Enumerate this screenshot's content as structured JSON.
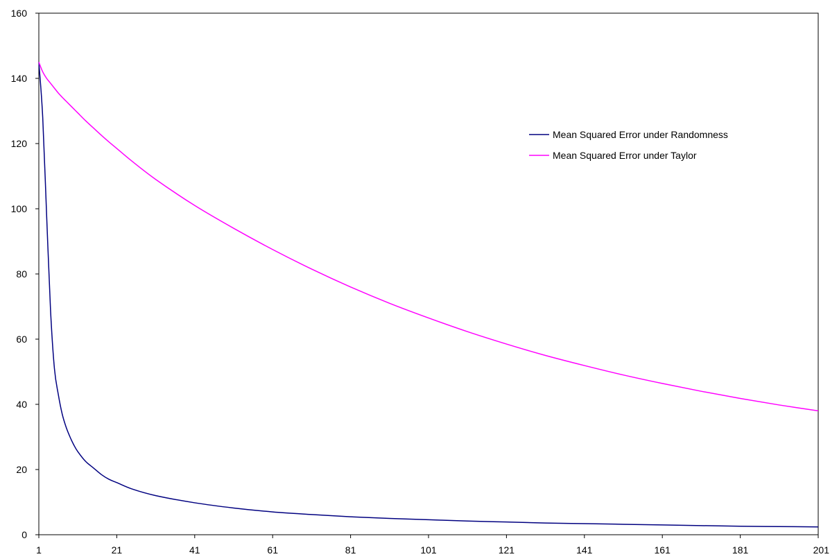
{
  "chart_data": {
    "type": "line",
    "title": "",
    "xlabel": "",
    "ylabel": "",
    "xlim": [
      1,
      201
    ],
    "ylim": [
      0,
      160
    ],
    "x_ticks": [
      1,
      21,
      41,
      61,
      81,
      101,
      121,
      141,
      161,
      181,
      201
    ],
    "y_ticks": [
      0,
      20,
      40,
      60,
      80,
      100,
      120,
      140,
      160
    ],
    "grid": false,
    "legend_position": "top-right",
    "x": [
      1,
      2,
      3,
      4,
      5,
      6,
      7,
      8,
      9,
      10,
      11,
      13,
      15,
      17,
      19,
      21,
      25,
      31,
      41,
      51,
      61,
      71,
      81,
      91,
      101,
      111,
      121,
      131,
      141,
      151,
      161,
      171,
      181,
      191,
      201
    ],
    "series": [
      {
        "name": "Mean Squared Error under Randomness",
        "color": "#000080",
        "values": [
          145,
          128,
          98,
          69,
          51,
          43,
          37,
          33,
          30,
          27.5,
          25.5,
          22.5,
          20.5,
          18.5,
          17,
          16,
          14,
          12,
          9.8,
          8.2,
          7,
          6.2,
          5.5,
          5,
          4.6,
          4.2,
          3.9,
          3.6,
          3.4,
          3.2,
          3.0,
          2.8,
          2.6,
          2.5,
          2.4
        ]
      },
      {
        "name": "Mean Squared Error under Taylor",
        "color": "#ff00ff",
        "values": [
          145,
          142,
          140,
          138.5,
          137,
          135.5,
          134.2,
          133,
          131.8,
          130.6,
          129.4,
          127,
          124.8,
          122.6,
          120.5,
          118.5,
          114.5,
          109,
          101,
          94,
          87.5,
          81.5,
          76,
          71,
          66.5,
          62.3,
          58.5,
          55,
          51.9,
          49,
          46.4,
          44,
          41.8,
          39.8,
          38
        ]
      }
    ]
  }
}
